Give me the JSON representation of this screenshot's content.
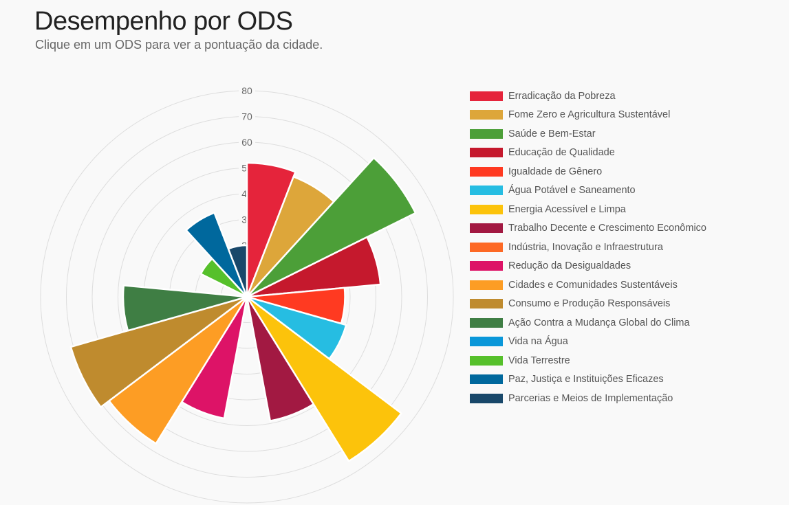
{
  "header": {
    "title": "Desempenho por ODS",
    "subtitle": "Clique em um ODS para ver a pontuação da cidade."
  },
  "chart_data": {
    "type": "polar-area",
    "title": "Desempenho por ODS",
    "subtitle": "Clique em um ODS para ver a pontuação da cidade.",
    "rlim": [
      0,
      80
    ],
    "radial_ticks": [
      "20",
      "30",
      "40",
      "50",
      "60",
      "70",
      "80"
    ],
    "grid": true,
    "legend_position": "right",
    "categories": [
      "Erradicação da Pobreza",
      "Fome Zero e Agricultura Sustentável",
      "Saúde e Bem-Estar",
      "Educação de Qualidade",
      "Igualdade de Gênero",
      "Água Potável e Saneamento",
      "Energia Acessível e Limpa",
      "Trabalho Decente e Crescimento Econômico",
      "Indústria, Inovação e Infraestrutura",
      "Redução da Desigualdades",
      "Cidades e Comunidades Sustentáveis",
      "Consumo e Produção Responsáveis",
      "Ação Contra a Mudança Global do Clima",
      "Vida na Água",
      "Vida Terrestre",
      "Paz, Justiça e Instituições Eficazes",
      "Parcerias e Meios de Implementação"
    ],
    "values": [
      52,
      50,
      73,
      52,
      38,
      40,
      75,
      49,
      2,
      48,
      67,
      71,
      48,
      0,
      20,
      35,
      20
    ],
    "colors": [
      "#e5243b",
      "#dda63a",
      "#4c9f38",
      "#c5192d",
      "#ff3a21",
      "#26bde2",
      "#fcc30b",
      "#a21942",
      "#fd6925",
      "#dd1367",
      "#fd9d24",
      "#bf8b2e",
      "#3f7e44",
      "#0a97d9",
      "#56c02b",
      "#00689d",
      "#19486a"
    ]
  }
}
